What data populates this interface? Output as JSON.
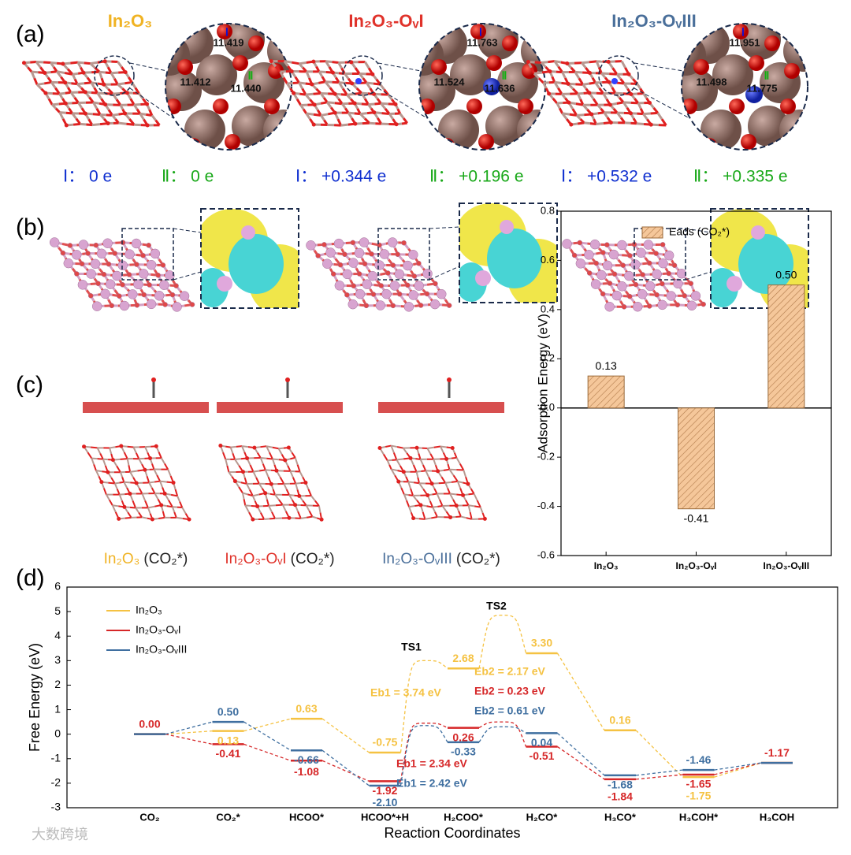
{
  "panel_labels": [
    "(a)",
    "(b)",
    "(c)",
    "(d)"
  ],
  "structures_a": [
    {
      "title": "In₂O₃",
      "color": "#f0b323",
      "sites": [
        {
          "label": "Ⅰ",
          "value": "11.419"
        },
        {
          "value": "11.412"
        },
        {
          "label": "Ⅱ",
          "value": "11.440"
        }
      ],
      "charges": [
        "Ⅰ： 0 e",
        "Ⅱ： 0 e"
      ]
    },
    {
      "title": "In₂O₃-OᵥI",
      "color": "#e0322a",
      "sites": [
        {
          "label": "Ⅰ",
          "value": "11.763"
        },
        {
          "value": "11.524"
        },
        {
          "label": "Ⅱ",
          "value": "11.636"
        }
      ],
      "charges": [
        "Ⅰ： +0.344 e",
        "Ⅱ： +0.196 e"
      ]
    },
    {
      "title": "In₂O₃-OᵥIII",
      "color": "#4a6f9a",
      "sites": [
        {
          "label": "Ⅰ",
          "value": "11.951"
        },
        {
          "value": "11.498"
        },
        {
          "label": "Ⅱ",
          "value": "11.775"
        }
      ],
      "charges": [
        "Ⅰ： +0.532 e",
        "Ⅱ： +0.335 e"
      ]
    }
  ],
  "captions_c": [
    {
      "name": "In₂O₃",
      "suffix": "(CO₂*)"
    },
    {
      "name": "In₂O₃-OᵥI",
      "suffix": "(CO₂*)"
    },
    {
      "name": "In₂O₃-OᵥIII",
      "suffix": "(CO₂*)"
    }
  ],
  "watermark": "大数跨境",
  "chart_data": [
    {
      "type": "bar",
      "ylabel": "Adsorption Energy (eV)",
      "categories": [
        "In₂O₃",
        "In₂O₃-OᵥI",
        "In₂O₃-OᵥIII"
      ],
      "series": [
        {
          "name": "Eads (CO₂*)",
          "color": "#f5c79a",
          "edge": "#9a6a3a",
          "values": [
            0.13,
            -0.41,
            0.5
          ],
          "value_labels": [
            "0.13",
            "-0.41",
            "0.50"
          ]
        }
      ],
      "ylim": [
        -0.6,
        0.8
      ],
      "yticks": [
        -0.6,
        -0.4,
        -0.2,
        {
          "value": 0,
          "label": "0.0"
        },
        0.2,
        0.4,
        0.6,
        0.8
      ],
      "legend": "upper center"
    },
    {
      "type": "energy_profile",
      "xlabel": "Reaction Coordinates",
      "ylabel": "Free Energy (eV)",
      "categories": [
        "CO₂",
        "CO₂*",
        "HCOO*",
        "HCOO*+H",
        "H₂COO*",
        "H₂CO*",
        "H₃CO*",
        "H₃COH*",
        "H₃COH"
      ],
      "ylim": [
        -3,
        6
      ],
      "yticks": [
        -3,
        -2,
        -1,
        0,
        1,
        2,
        3,
        4,
        5,
        6
      ],
      "legend": "upper left",
      "transition_states": [
        {
          "label": "TS1",
          "after": 3
        },
        {
          "label": "TS2",
          "after": 4
        }
      ],
      "series": [
        {
          "name": "In₂O₃",
          "color": "#f5c242",
          "values": [
            0.0,
            0.13,
            0.63,
            -0.75,
            2.68,
            3.3,
            0.16,
            -1.75,
            -1.17
          ],
          "value_labels": [
            null,
            "0.13",
            "0.63",
            "-0.75",
            "2.68",
            "3.30",
            "0.16",
            "-1.75",
            null
          ],
          "ts_values": [
            3.0,
            4.85
          ]
        },
        {
          "name": "In₂O₃-OᵥI",
          "color": "#d62728",
          "values": [
            0.0,
            -0.41,
            -1.08,
            -1.92,
            0.26,
            -0.51,
            -1.84,
            -1.65,
            -1.17
          ],
          "value_labels": [
            "0.00",
            "-0.41",
            "-1.08",
            "-1.92",
            "0.26",
            "-0.51",
            "-1.84",
            "-1.65",
            "-1.17"
          ],
          "ts_values": [
            0.45,
            0.5
          ]
        },
        {
          "name": "In₂O₃-OᵥIII",
          "color": "#3f6fa0",
          "values": [
            0.0,
            0.5,
            -0.66,
            -2.1,
            -0.33,
            0.04,
            -1.68,
            -1.46,
            -1.17
          ],
          "value_labels": [
            null,
            "0.50",
            "-0.66",
            "-2.10",
            "-0.33",
            "0.04",
            "-1.68",
            "-1.46",
            null
          ],
          "ts_values": [
            0.35,
            0.3
          ]
        }
      ],
      "annotations": [
        {
          "text": "Eb1 = 3.74 eV",
          "series": 0
        },
        {
          "text": "Eb2 = 2.17 eV",
          "series": 0
        },
        {
          "text": "Eb2 = 0.23 eV",
          "series": 1
        },
        {
          "text": "Eb2 = 0.61 eV",
          "series": 2
        },
        {
          "text": "Eb1 = 2.34 eV",
          "series": 1
        },
        {
          "text": "Eb1 = 2.42 eV",
          "series": 2
        }
      ]
    }
  ]
}
